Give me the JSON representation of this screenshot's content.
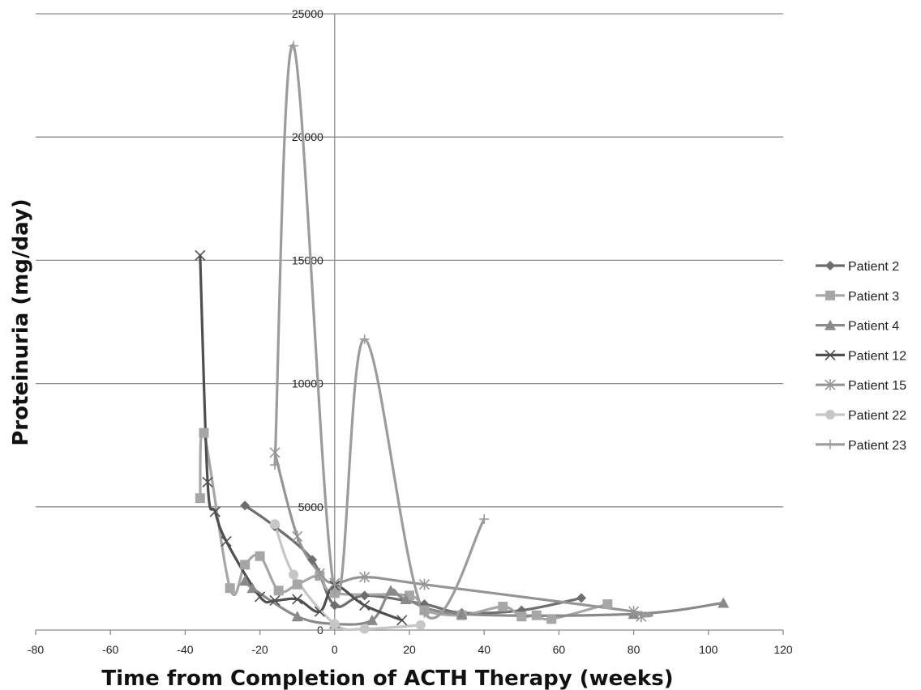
{
  "chart_data": {
    "type": "line",
    "title": "",
    "xlabel": "Time from Completion of ACTH Therapy (weeks)",
    "ylabel": "Proteinuria (mg/day)",
    "xlim": [
      -80,
      120
    ],
    "ylim": [
      0,
      25000
    ],
    "x_ticks": [
      "-80",
      "-60",
      "-40",
      "-20",
      "0",
      "20",
      "40",
      "60",
      "80",
      "100",
      "120"
    ],
    "y_ticks": [
      "0",
      "5000",
      "10000",
      "15000",
      "20000",
      "25000"
    ],
    "grid": "horizontal",
    "legend_position": "right",
    "series": [
      {
        "name": "Patient 2",
        "color": "#6e6e6e",
        "marker": "diamond",
        "points": [
          [
            -24,
            5050
          ],
          [
            -16,
            4200
          ],
          [
            -6,
            2850
          ],
          [
            0,
            1000
          ],
          [
            8,
            1400
          ],
          [
            24,
            1050
          ],
          [
            34,
            700
          ],
          [
            50,
            800
          ],
          [
            66,
            1300
          ]
        ]
      },
      {
        "name": "Patient 3",
        "color": "#a6a6a6",
        "marker": "square",
        "points": [
          [
            -36,
            5350
          ],
          [
            -35,
            8000
          ],
          [
            -28,
            1700
          ],
          [
            -24,
            2650
          ],
          [
            -20,
            3000
          ],
          [
            -15,
            1600
          ],
          [
            -10,
            1850
          ],
          [
            -4,
            2200
          ],
          [
            0,
            1500
          ],
          [
            20,
            1400
          ],
          [
            24,
            800
          ],
          [
            34,
            600
          ],
          [
            45,
            950
          ],
          [
            50,
            550
          ],
          [
            54,
            600
          ],
          [
            58,
            450
          ],
          [
            73,
            1050
          ]
        ]
      },
      {
        "name": "Patient 4",
        "color": "#8a8a8a",
        "marker": "triangle",
        "points": [
          [
            -24,
            2000
          ],
          [
            -22,
            1700
          ],
          [
            -10,
            550
          ],
          [
            0,
            250
          ],
          [
            10,
            400
          ],
          [
            15,
            1600
          ],
          [
            19,
            1250
          ],
          [
            34,
            650
          ],
          [
            80,
            650
          ],
          [
            104,
            1100
          ]
        ]
      },
      {
        "name": "Patient 12",
        "color": "#4f4f4f",
        "marker": "x",
        "points": [
          [
            -36,
            15200
          ],
          [
            -34,
            6000
          ],
          [
            -32,
            4800
          ],
          [
            -29,
            3600
          ],
          [
            -20,
            1350
          ],
          [
            -16,
            1200
          ],
          [
            -10,
            1250
          ],
          [
            -4,
            750
          ],
          [
            0,
            1800
          ],
          [
            8,
            1000
          ],
          [
            18,
            400
          ]
        ]
      },
      {
        "name": "Patient 15",
        "color": "#959595",
        "marker": "star",
        "points": [
          [
            -16,
            7200
          ],
          [
            -10,
            3800
          ],
          [
            -4,
            2300
          ],
          [
            0,
            1900
          ],
          [
            8,
            2150
          ],
          [
            24,
            1850
          ],
          [
            80,
            750
          ],
          [
            82,
            550
          ]
        ]
      },
      {
        "name": "Patient 22",
        "color": "#c6c6c6",
        "marker": "circle",
        "points": [
          [
            -16,
            4300
          ],
          [
            -11,
            2250
          ],
          [
            0,
            250
          ],
          [
            8,
            50
          ],
          [
            23,
            200
          ]
        ]
      },
      {
        "name": "Patient 23",
        "color": "#9c9c9c",
        "marker": "plus",
        "points": [
          [
            -16,
            6700
          ],
          [
            -11,
            23700
          ],
          [
            0,
            1600
          ],
          [
            8,
            11800
          ],
          [
            24,
            700
          ],
          [
            40,
            4500
          ]
        ]
      }
    ]
  }
}
